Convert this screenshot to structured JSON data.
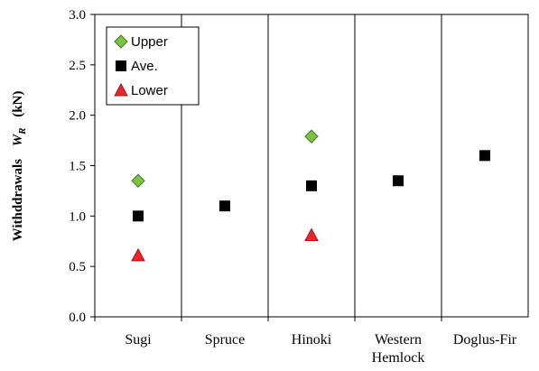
{
  "chart_data": {
    "type": "scatter",
    "title": "",
    "xlabel": "",
    "ylabel": {
      "prefix": "Withddrawals",
      "symbol": "W",
      "subscript": "R",
      "unit": "(kN)"
    },
    "ylim": [
      0.0,
      3.0
    ],
    "yticks": [
      "0.0",
      "0.5",
      "1.0",
      "1.5",
      "2.0",
      "2.5",
      "3.0"
    ],
    "categories": [
      [
        "Sugi"
      ],
      [
        "Spruce"
      ],
      [
        "Hinoki"
      ],
      [
        "Western",
        "Hemlock"
      ],
      [
        "Doglus-Fir"
      ]
    ],
    "grid": "vertical-separators",
    "legend_position": "top-left",
    "series": [
      {
        "name": "Upper",
        "marker": "diamond",
        "color": "#7dc242",
        "stroke": "#3a7d1a",
        "values": [
          1.35,
          null,
          1.79,
          null,
          null
        ]
      },
      {
        "name": "Ave.",
        "marker": "square",
        "color": "#000000",
        "stroke": "#000000",
        "values": [
          1.0,
          1.1,
          1.3,
          1.35,
          1.6
        ]
      },
      {
        "name": "Lower",
        "marker": "triangle",
        "color": "#e8272a",
        "stroke": "#b01010",
        "values": [
          0.61,
          null,
          0.81,
          null,
          null
        ]
      }
    ]
  }
}
